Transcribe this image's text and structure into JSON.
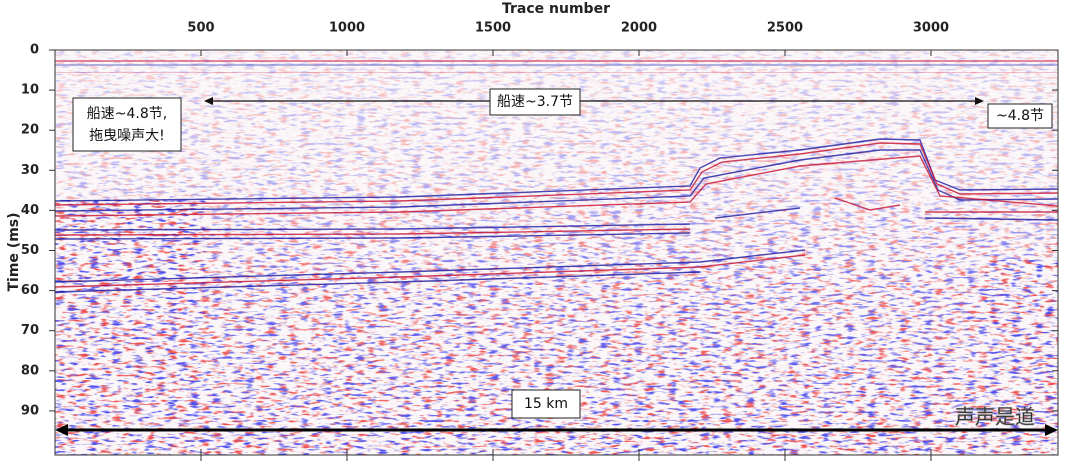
{
  "chart_data": {
    "type": "seismic",
    "xlabel": "Trace number",
    "ylabel": "Time (ms)",
    "xlim": [
      0,
      3435
    ],
    "xticks": [
      500,
      1000,
      1500,
      2000,
      2500,
      3000
    ],
    "ylim": [
      0,
      101
    ],
    "yticks": [
      0,
      10,
      20,
      30,
      40,
      50,
      60,
      70,
      80,
      90
    ],
    "y_inverted": true,
    "x_axis_position": "top",
    "annotations": [
      "船速~4.8节,",
      "拖曳噪声大!",
      "船速~3.7节",
      "~4.8节",
      "15 km"
    ],
    "watermark": "声声是道"
  }
}
